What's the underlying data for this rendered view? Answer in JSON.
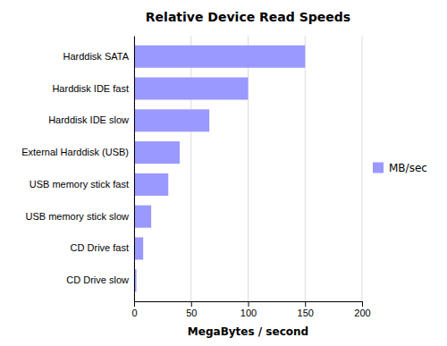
{
  "chart_data": {
    "type": "bar",
    "orientation": "horizontal",
    "title": "Relative Device Read Speeds",
    "xlabel": "MegaBytes / second",
    "categories": [
      "CD Drive slow",
      "CD Drive fast",
      "USB memory stick slow",
      "USB memory stick fast",
      "External Harddisk (USB)",
      "Harddisk IDE slow",
      "Harddisk IDE fast",
      "Harddisk SATA"
    ],
    "series": [
      {
        "name": "MB/sec",
        "color": "#9999FF",
        "values": [
          2,
          8,
          15,
          30,
          40,
          66,
          100,
          150
        ]
      }
    ],
    "xlim": [
      0,
      200
    ],
    "xticks": [
      0,
      50,
      100,
      150,
      200
    ],
    "grid": true,
    "legend": "right"
  }
}
